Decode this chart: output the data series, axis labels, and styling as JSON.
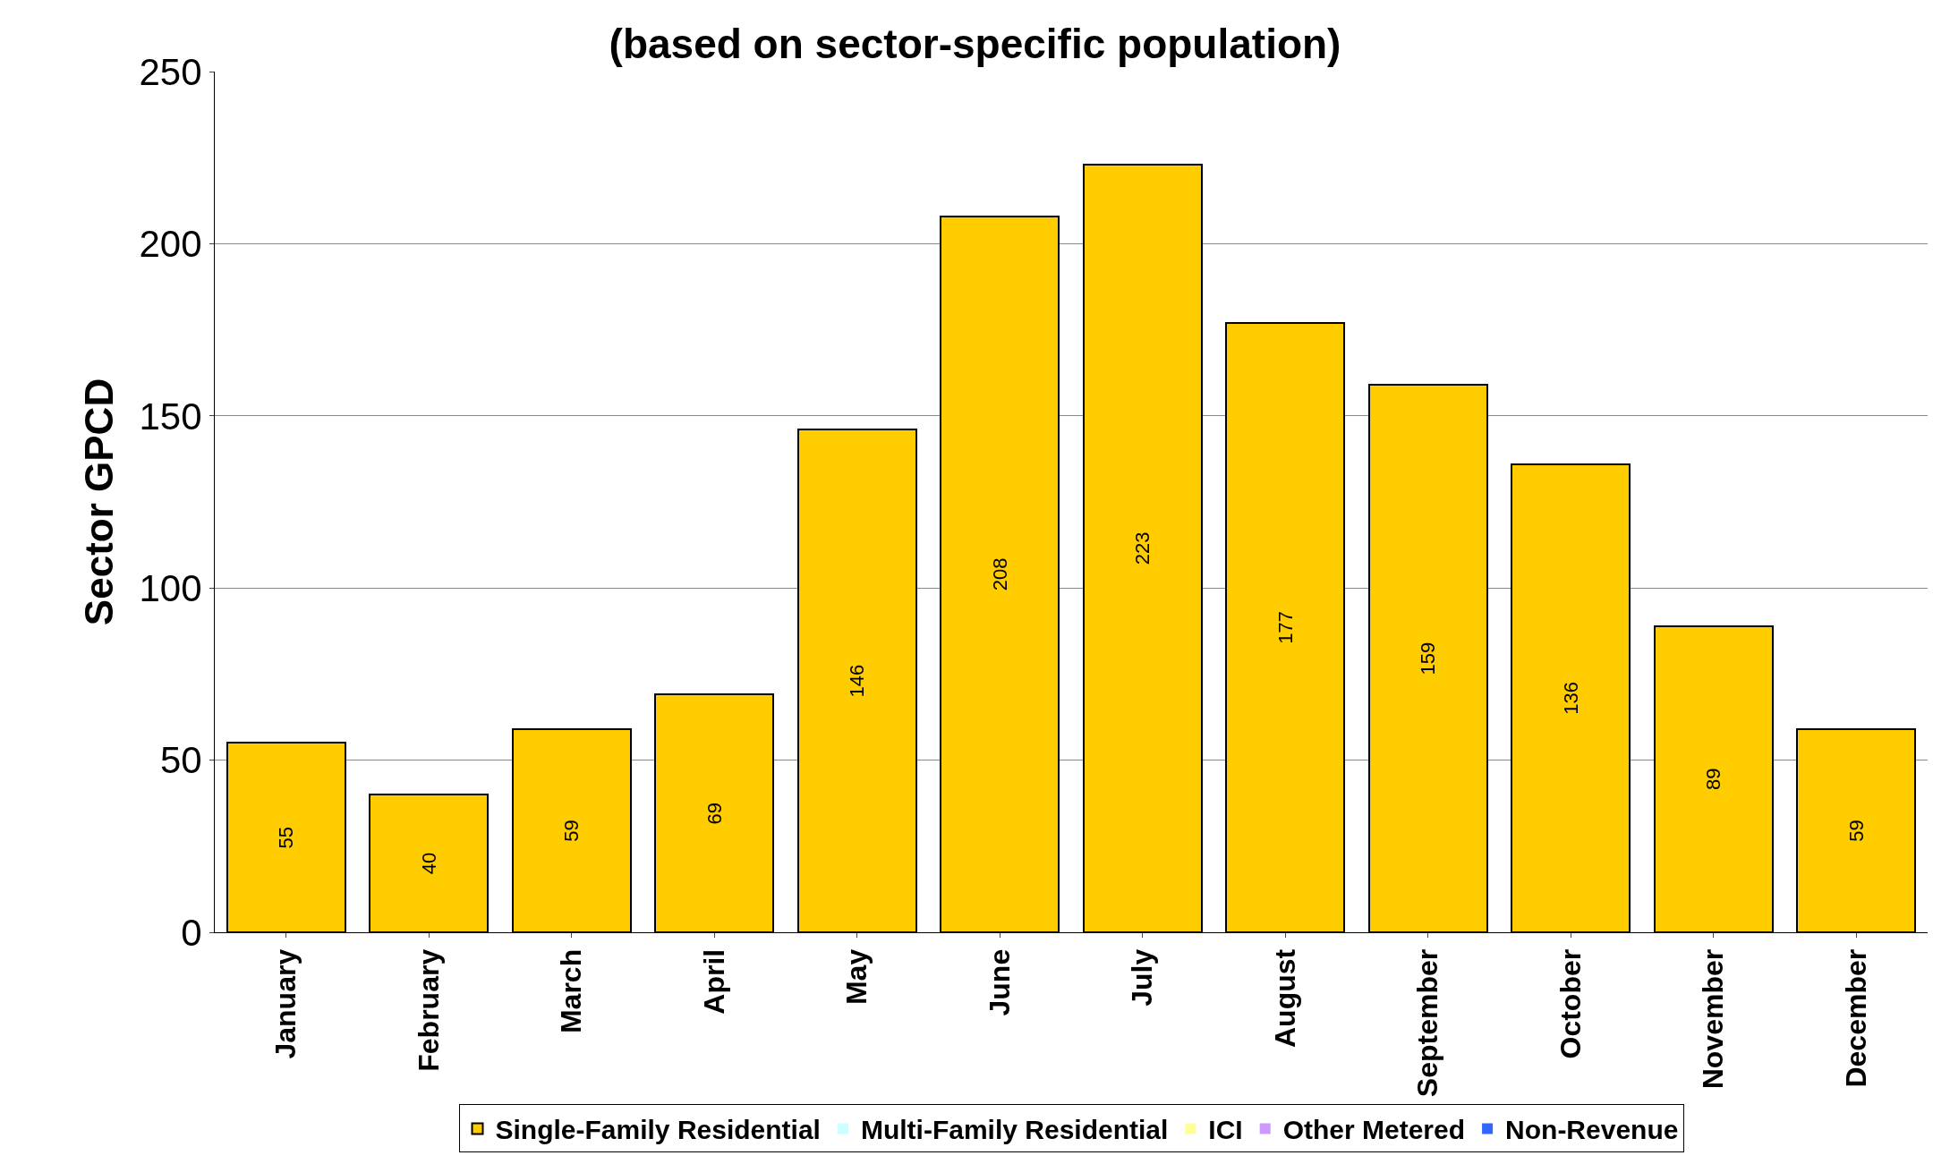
{
  "chart_data": {
    "type": "bar",
    "stacked": true,
    "title": "(based on sector-specific population)",
    "ylabel": "Sector GPCD",
    "categories": [
      "January",
      "February",
      "March",
      "April",
      "May",
      "June",
      "July",
      "August",
      "September",
      "October",
      "November",
      "December"
    ],
    "series": [
      {
        "name": "Single-Family Residential",
        "color": "#ffcc00",
        "values": [
          55,
          40,
          59,
          69,
          146,
          208,
          223,
          177,
          159,
          136,
          89,
          59
        ],
        "value_labels": [
          "55",
          "40",
          "59",
          "69",
          "146",
          "208",
          "223",
          "177",
          "159",
          "136",
          "89",
          "59"
        ]
      },
      {
        "name": "Multi-Family Residential",
        "color": "#ccffff",
        "values": [
          0,
          0,
          0,
          0,
          0,
          0,
          0,
          0,
          0,
          0,
          0,
          0
        ]
      },
      {
        "name": "ICI",
        "color": "#ffff99",
        "values": [
          0,
          0,
          0,
          0,
          0,
          0,
          0,
          0,
          0,
          0,
          0,
          0
        ]
      },
      {
        "name": "Other Metered",
        "color": "#cc99ff",
        "values": [
          0,
          0,
          0,
          0,
          0,
          0,
          0,
          0,
          0,
          0,
          0,
          0
        ]
      },
      {
        "name": "Non-Revenue",
        "color": "#3366ff",
        "values": [
          0,
          0,
          0,
          0,
          0,
          0,
          0,
          0,
          0,
          0,
          0,
          0
        ]
      }
    ],
    "ylim": [
      0,
      250
    ],
    "yticks": [
      0,
      50,
      100,
      150,
      200,
      250
    ],
    "grid": "y",
    "legend": "bottom"
  }
}
